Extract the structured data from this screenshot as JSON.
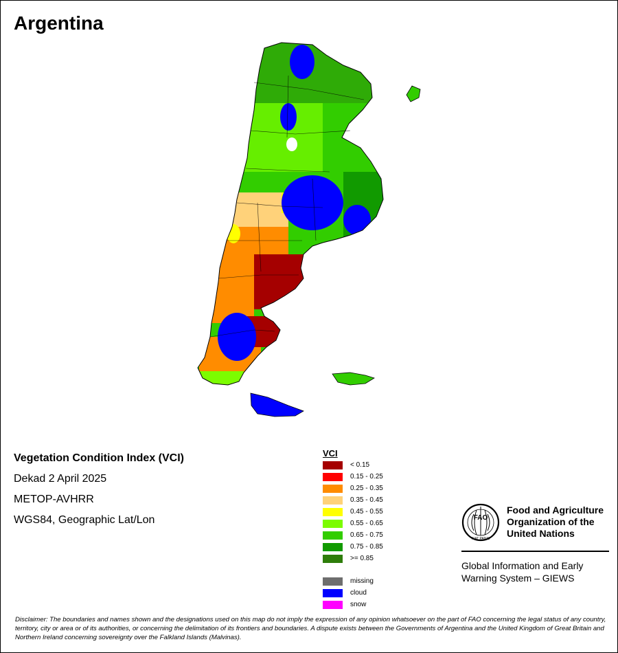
{
  "title": "Argentina",
  "info": {
    "heading": "Vegetation Condition Index (VCI)",
    "period": "Dekad 2 April 2025",
    "sensor": "METOP-AVHRR",
    "projection": "WGS84, Geographic Lat/Lon"
  },
  "legend": {
    "title": "VCI",
    "classes": [
      {
        "label": "< 0.15",
        "color": "#a50000"
      },
      {
        "label": "0.15 - 0.25",
        "color": "#ff0000"
      },
      {
        "label": "0.25 - 0.35",
        "color": "#ff8c00"
      },
      {
        "label": "0.35 - 0.45",
        "color": "#ffd27a"
      },
      {
        "label": "0.45 - 0.55",
        "color": "#ffff00"
      },
      {
        "label": "0.55 - 0.65",
        "color": "#7cfc00"
      },
      {
        "label": "0.65 - 0.75",
        "color": "#32cd00"
      },
      {
        "label": "0.75 - 0.85",
        "color": "#119a00"
      },
      {
        "label": ">= 0.85",
        "color": "#2e7d0a"
      }
    ],
    "other": [
      {
        "label": "missing",
        "color": "#6e6e6e"
      },
      {
        "label": "cloud",
        "color": "#0000ff"
      },
      {
        "label": "snow",
        "color": "#ff00ff"
      }
    ]
  },
  "organization": {
    "logo_text": "FAO",
    "logo_motto": "FIAT PANIS",
    "name_lines": [
      "Food and Agriculture",
      "Organization of the",
      "United Nations"
    ],
    "system_lines": [
      "Global Information and Early",
      "Warning System – GIEWS"
    ]
  },
  "disclaimer": "Disclaimer: The boundaries and names shown and the designations used on this map do not imply the expression of any opinion whatsoever on the part of FAO concerning the legal status of any country, territory, city or area or of its authorities, or concerning the delimitation of its frontiers and boundaries. A dispute exists between the Governments of Argentina and the United Kingdom of Great Britain and Northern Ireland concerning sovereignty over the Falkland Islands (Malvinas)."
}
